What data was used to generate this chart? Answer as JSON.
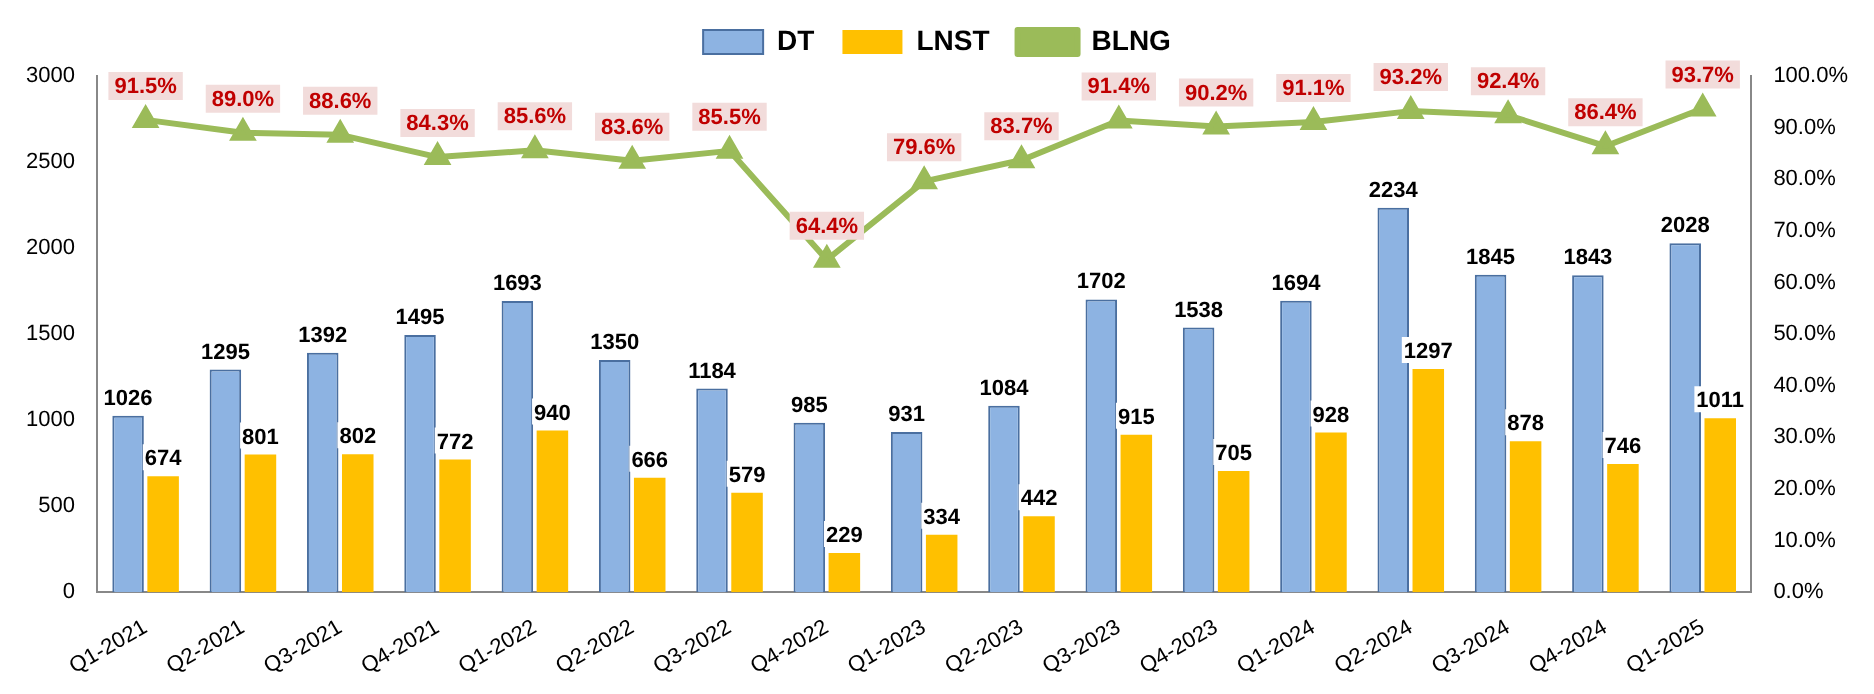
{
  "chart_data": {
    "type": "bar",
    "categories": [
      "Q1-2021",
      "Q2-2021",
      "Q3-2021",
      "Q4-2021",
      "Q1-2022",
      "Q2-2022",
      "Q3-2022",
      "Q4-2022",
      "Q1-2023",
      "Q2-2023",
      "Q3-2023",
      "Q4-2023",
      "Q1-2024",
      "Q2-2024",
      "Q3-2024",
      "Q4-2024",
      "Q1-2025"
    ],
    "series": [
      {
        "name": "DT",
        "color": "#8db3e2",
        "values": [
          1026,
          1295,
          1392,
          1495,
          1693,
          1350,
          1184,
          985,
          931,
          1084,
          1702,
          1538,
          1694,
          2234,
          1845,
          1843,
          2028
        ],
        "value_labels": [
          "1026",
          "1295",
          "1392",
          "1495",
          "1693",
          "1350",
          "1184",
          "985",
          "931",
          "1084",
          "1702",
          "1538",
          "1694",
          "2234",
          "1845",
          "1843",
          "2028"
        ]
      },
      {
        "name": "LNST",
        "color": "#ffc000",
        "values": [
          674,
          801,
          802,
          772,
          940,
          666,
          579,
          229,
          334,
          442,
          915,
          705,
          928,
          1297,
          878,
          746,
          1011
        ],
        "value_labels": [
          "674",
          "801",
          "802",
          "772",
          "940",
          "666",
          "579",
          "229",
          "334",
          "442",
          "915",
          "705",
          "928",
          "1297",
          "878",
          "746",
          "1011"
        ]
      },
      {
        "name": "BLNG",
        "type": "line",
        "axis": "y2",
        "color": "#9bbb59",
        "marker": "triangle",
        "values": [
          91.5,
          89.0,
          88.6,
          84.3,
          85.6,
          83.6,
          85.5,
          64.4,
          79.6,
          83.7,
          91.4,
          90.2,
          91.1,
          93.2,
          92.4,
          86.4,
          93.7
        ],
        "value_labels": [
          "91.5%",
          "89.0%",
          "88.6%",
          "84.3%",
          "85.6%",
          "83.6%",
          "85.5%",
          "64.4%",
          "79.6%",
          "83.7%",
          "91.4%",
          "90.2%",
          "91.1%",
          "93.2%",
          "92.4%",
          "86.4%",
          "93.7%"
        ]
      }
    ],
    "ylim": [
      0,
      3000
    ],
    "yticks": [
      0,
      500,
      1000,
      1500,
      2000,
      2500,
      3000
    ],
    "y2lim": [
      0,
      100
    ],
    "y2ticks": [
      {
        "value": 0,
        "label": "0.0%"
      },
      {
        "value": 10,
        "label": "10.0%"
      },
      {
        "value": 20,
        "label": "20.0%"
      },
      {
        "value": 30,
        "label": "30.0%"
      },
      {
        "value": 40,
        "label": "40.0%"
      },
      {
        "value": 50,
        "label": "50.0%"
      },
      {
        "value": 60,
        "label": "60.0%"
      },
      {
        "value": 70,
        "label": "70.0%"
      },
      {
        "value": 80,
        "label": "80.0%"
      },
      {
        "value": 90,
        "label": "90.0%"
      },
      {
        "value": 100,
        "label": "100.0%"
      }
    ],
    "legend": "top",
    "grid": false
  }
}
